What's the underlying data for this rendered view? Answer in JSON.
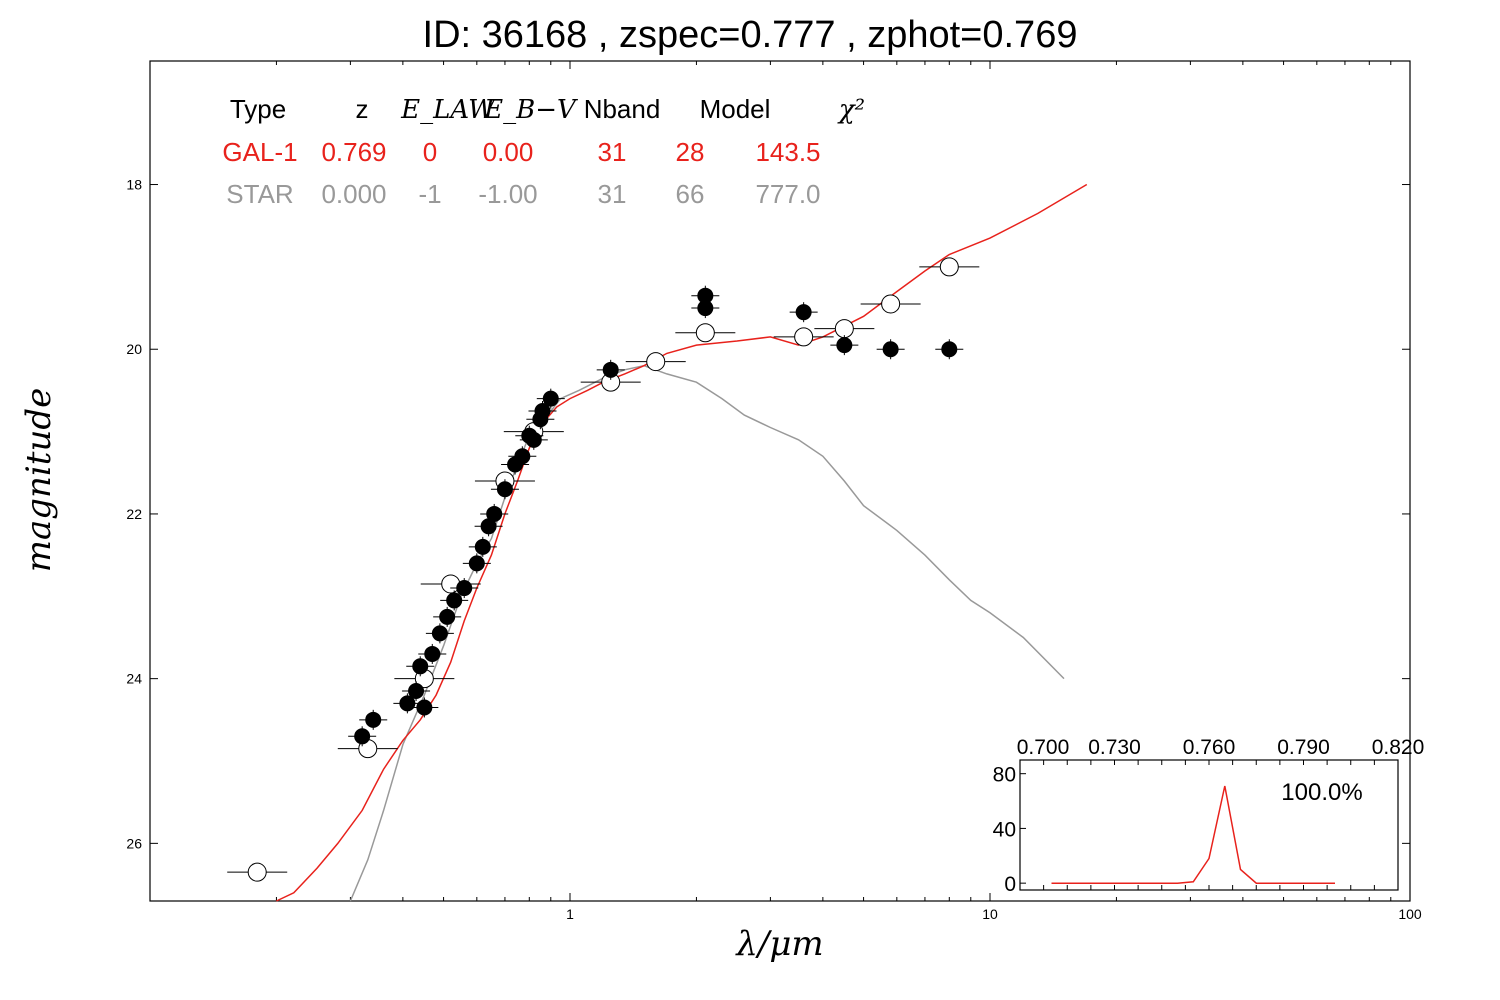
{
  "title": "ID:  36168 , zspec=0.777 , zphot=0.769",
  "chart_data": {
    "type": "scatter",
    "xlabel": "λ/μm",
    "ylabel": "magnitude",
    "xscale": "log",
    "xlim": [
      0.1,
      100
    ],
    "ylim": [
      26.7,
      16.5
    ],
    "x_tick_labels": [
      "1",
      "10",
      "100"
    ],
    "x_ticks": [
      1,
      10,
      100
    ],
    "y_ticks": [
      18,
      20,
      22,
      24,
      26
    ],
    "y_tick_labels": [
      "18",
      "20",
      "22",
      "24",
      "26"
    ],
    "fit_table": {
      "headers": [
        "Type",
        "z",
        "E_LAW",
        "E_B−V",
        "Nband",
        "Model",
        "χ²"
      ],
      "rows": [
        {
          "color": "#e8221c",
          "cells": [
            "GAL-1",
            "0.769",
            "0",
            "0.00",
            "31",
            "28",
            "143.5"
          ]
        },
        {
          "color": "#999999",
          "cells": [
            "STAR",
            "0.000",
            "-1",
            "-1.00",
            "31",
            "66",
            "777.0"
          ]
        }
      ]
    },
    "series": [
      {
        "name": "GAL-1",
        "color": "#e8221c",
        "points": [
          [
            0.2,
            27.0
          ],
          [
            0.22,
            26.6
          ],
          [
            0.25,
            26.3
          ],
          [
            0.28,
            26.0
          ],
          [
            0.32,
            25.6
          ],
          [
            0.36,
            25.1
          ],
          [
            0.4,
            24.75
          ],
          [
            0.44,
            24.5
          ],
          [
            0.48,
            24.2
          ],
          [
            0.52,
            23.8
          ],
          [
            0.56,
            23.3
          ],
          [
            0.6,
            22.9
          ],
          [
            0.65,
            22.5
          ],
          [
            0.7,
            22.0
          ],
          [
            0.75,
            21.6
          ],
          [
            0.8,
            21.2
          ],
          [
            0.86,
            20.9
          ],
          [
            0.93,
            20.7
          ],
          [
            1.0,
            20.6
          ],
          [
            1.1,
            20.5
          ],
          [
            1.2,
            20.4
          ],
          [
            1.35,
            20.3
          ],
          [
            1.5,
            20.2
          ],
          [
            1.7,
            20.05
          ],
          [
            2.0,
            19.95
          ],
          [
            2.5,
            19.9
          ],
          [
            3.0,
            19.85
          ],
          [
            3.5,
            19.95
          ],
          [
            4.0,
            19.85
          ],
          [
            5.0,
            19.6
          ],
          [
            6.0,
            19.3
          ],
          [
            7.0,
            19.05
          ],
          [
            8.0,
            18.85
          ],
          [
            10.0,
            18.65
          ],
          [
            13.0,
            18.35
          ],
          [
            17.0,
            18.0
          ]
        ]
      },
      {
        "name": "STAR",
        "color": "#999999",
        "points": [
          [
            0.3,
            26.7
          ],
          [
            0.33,
            26.2
          ],
          [
            0.36,
            25.6
          ],
          [
            0.4,
            24.8
          ],
          [
            0.45,
            24.2
          ],
          [
            0.5,
            23.6
          ],
          [
            0.55,
            23.0
          ],
          [
            0.6,
            22.6
          ],
          [
            0.65,
            22.3
          ],
          [
            0.7,
            21.8
          ],
          [
            0.75,
            21.4
          ],
          [
            0.8,
            21.05
          ],
          [
            0.87,
            20.85
          ],
          [
            0.95,
            20.6
          ],
          [
            1.05,
            20.5
          ],
          [
            1.2,
            20.35
          ],
          [
            1.35,
            20.25
          ],
          [
            1.5,
            20.2
          ],
          [
            1.7,
            20.3
          ],
          [
            2.0,
            20.4
          ],
          [
            2.3,
            20.6
          ],
          [
            2.6,
            20.8
          ],
          [
            3.0,
            20.95
          ],
          [
            3.5,
            21.1
          ],
          [
            4.0,
            21.3
          ],
          [
            4.5,
            21.6
          ],
          [
            5.0,
            21.9
          ],
          [
            6.0,
            22.2
          ],
          [
            7.0,
            22.5
          ],
          [
            8.0,
            22.8
          ],
          [
            9.0,
            23.05
          ],
          [
            10.0,
            23.2
          ],
          [
            12.0,
            23.5
          ],
          [
            15.0,
            24.0
          ]
        ]
      }
    ],
    "observed_filled": [
      [
        0.32,
        24.7
      ],
      [
        0.34,
        24.5
      ],
      [
        0.41,
        24.3
      ],
      [
        0.43,
        24.15
      ],
      [
        0.44,
        23.85
      ],
      [
        0.45,
        24.35
      ],
      [
        0.47,
        23.7
      ],
      [
        0.49,
        23.45
      ],
      [
        0.51,
        23.25
      ],
      [
        0.53,
        23.05
      ],
      [
        0.56,
        22.9
      ],
      [
        0.6,
        22.6
      ],
      [
        0.62,
        22.4
      ],
      [
        0.64,
        22.15
      ],
      [
        0.66,
        22.0
      ],
      [
        0.7,
        21.7
      ],
      [
        0.74,
        21.4
      ],
      [
        0.77,
        21.3
      ],
      [
        0.8,
        21.05
      ],
      [
        0.82,
        21.1
      ],
      [
        0.85,
        20.85
      ],
      [
        0.86,
        20.75
      ],
      [
        0.9,
        20.6
      ],
      [
        1.25,
        20.25
      ],
      [
        2.1,
        19.35
      ],
      [
        2.1,
        19.5
      ],
      [
        3.6,
        19.55
      ],
      [
        4.5,
        19.95
      ],
      [
        5.8,
        20.0
      ],
      [
        8.0,
        20.0
      ]
    ],
    "observed_open": [
      [
        0.18,
        26.35
      ],
      [
        0.33,
        24.85
      ],
      [
        0.45,
        24.0
      ],
      [
        0.52,
        22.85
      ],
      [
        0.7,
        21.6
      ],
      [
        0.82,
        21.0
      ],
      [
        1.25,
        20.4
      ],
      [
        1.6,
        20.15
      ],
      [
        2.1,
        19.8
      ],
      [
        3.6,
        19.85
      ],
      [
        4.5,
        19.75
      ],
      [
        5.8,
        19.45
      ],
      [
        8.0,
        19.0
      ]
    ],
    "inset": {
      "type": "line",
      "x_tick_labels": [
        "0.700",
        "0.730",
        "0.760",
        "0.790",
        "0.820"
      ],
      "x_ticks": [
        0.7,
        0.73,
        0.76,
        0.79,
        0.82
      ],
      "y_tick_labels": [
        "0",
        "40",
        "80"
      ],
      "y_ticks": [
        0,
        40,
        80
      ],
      "xlim": [
        0.7,
        0.82
      ],
      "ylim": [
        -5,
        90
      ],
      "annotation": "100.0%",
      "x": [
        0.71,
        0.72,
        0.73,
        0.74,
        0.75,
        0.755,
        0.76,
        0.765,
        0.77,
        0.775,
        0.78,
        0.79,
        0.8
      ],
      "values": [
        0,
        0,
        0,
        0,
        0,
        1,
        18,
        71,
        10,
        0,
        0,
        0,
        0
      ]
    }
  }
}
